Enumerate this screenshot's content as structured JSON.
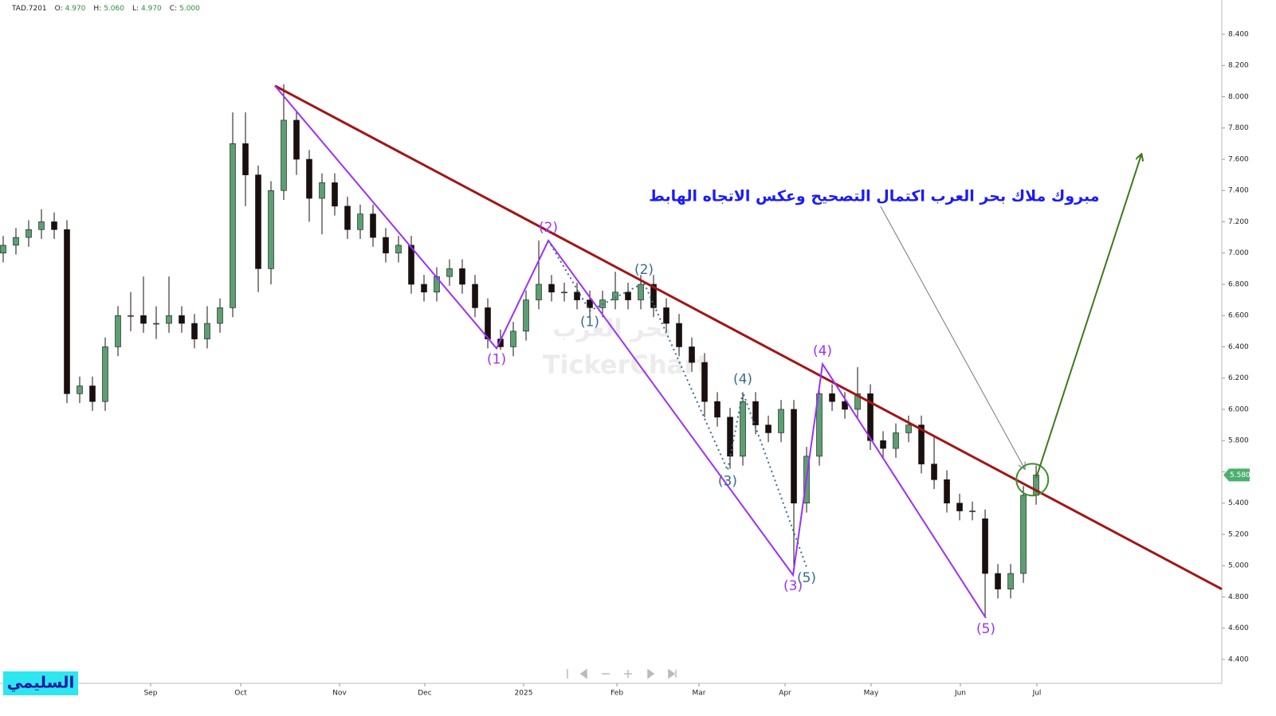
{
  "chart_data": {
    "type": "candlestick",
    "quote": {
      "symbol": "TAD.7201",
      "fields": [
        {
          "label": "O:",
          "value": "4.970"
        },
        {
          "label": "H:",
          "value": "5.060"
        },
        {
          "label": "L:",
          "value": "4.970"
        },
        {
          "label": "C:",
          "value": "5.000"
        }
      ]
    },
    "up_color": "#5b9f72",
    "down_color": "#1a0f0f",
    "xlim": [
      -0.25,
      95.56
    ],
    "ylim": [
      4.247,
      8.619
    ],
    "xticks": [
      {
        "value": 11.56,
        "label": "Sep"
      },
      {
        "value": 18.63,
        "label": "Oct"
      },
      {
        "value": 26.38,
        "label": "Nov"
      },
      {
        "value": 33.06,
        "label": "Dec"
      },
      {
        "value": 40.81,
        "label": "2025"
      },
      {
        "value": 48.13,
        "label": "Feb"
      },
      {
        "value": 54.56,
        "label": "Mar"
      },
      {
        "value": 61.31,
        "label": "Apr"
      },
      {
        "value": 68.06,
        "label": "May"
      },
      {
        "value": 75.06,
        "label": "Jun"
      },
      {
        "value": 81.06,
        "label": "Jul"
      }
    ],
    "yticks": [
      {
        "value": 4.4,
        "label": "4.400"
      },
      {
        "value": 4.6,
        "label": "4.600"
      },
      {
        "value": 4.8,
        "label": "4.800"
      },
      {
        "value": 5.0,
        "label": "5.000"
      },
      {
        "value": 5.2,
        "label": "5.200"
      },
      {
        "value": 5.4,
        "label": "5.400"
      },
      {
        "value": 5.6,
        "label": "5.600"
      },
      {
        "value": 5.8,
        "label": "5.800"
      },
      {
        "value": 6.0,
        "label": "6.000"
      },
      {
        "value": 6.2,
        "label": "6.200"
      },
      {
        "value": 6.4,
        "label": "6.400"
      },
      {
        "value": 6.6,
        "label": "6.600"
      },
      {
        "value": 6.8,
        "label": "6.800"
      },
      {
        "value": 7.0,
        "label": "7.000"
      },
      {
        "value": 7.2,
        "label": "7.200"
      },
      {
        "value": 7.4,
        "label": "7.400"
      },
      {
        "value": 7.6,
        "label": "7.600"
      },
      {
        "value": 7.8,
        "label": "7.800"
      },
      {
        "value": 8.0,
        "label": "8.000"
      },
      {
        "value": 8.2,
        "label": "8.200"
      },
      {
        "value": 8.4,
        "label": "8.400"
      }
    ],
    "open": [
      7.0,
      7.05,
      7.1,
      7.15,
      7.2,
      7.15,
      6.1,
      6.15,
      6.05,
      6.4,
      6.6,
      6.6,
      6.55,
      6.55,
      6.6,
      6.55,
      6.45,
      6.55,
      6.65,
      7.7,
      7.5,
      6.9,
      7.4,
      7.85,
      7.6,
      7.35,
      7.45,
      7.3,
      7.15,
      7.25,
      7.1,
      7.0,
      7.05,
      6.8,
      6.75,
      6.85,
      6.9,
      6.8,
      6.65,
      6.45,
      6.4,
      6.5,
      6.7,
      6.8,
      6.75,
      6.75,
      6.7,
      6.65,
      6.7,
      6.75,
      6.7,
      6.8,
      6.65,
      6.55,
      6.4,
      6.3,
      6.05,
      5.95,
      5.7,
      6.05,
      5.9,
      5.85,
      6.0,
      5.4,
      5.7,
      6.1,
      6.05,
      6.0,
      6.1,
      5.8,
      5.75,
      5.85,
      5.9,
      5.65,
      5.55,
      5.4,
      5.35,
      5.3,
      4.95,
      4.85,
      4.95,
      5.45
    ],
    "high": [
      7.11,
      7.16,
      7.21,
      7.28,
      7.26,
      7.21,
      6.21,
      6.21,
      6.46,
      6.66,
      6.75,
      6.85,
      6.66,
      6.85,
      6.66,
      6.61,
      6.66,
      6.71,
      7.9,
      7.9,
      7.56,
      7.46,
      8.08,
      7.91,
      7.66,
      7.51,
      7.51,
      7.36,
      7.31,
      7.31,
      7.16,
      7.11,
      7.11,
      6.86,
      6.91,
      6.96,
      6.96,
      6.86,
      6.71,
      6.51,
      6.56,
      6.76,
      7.08,
      6.86,
      6.81,
      6.81,
      6.76,
      6.76,
      6.88,
      6.81,
      6.86,
      6.86,
      6.71,
      6.61,
      6.46,
      6.36,
      6.11,
      6.01,
      6.11,
      6.11,
      5.96,
      6.06,
      6.06,
      5.76,
      6.16,
      6.16,
      6.11,
      6.27,
      6.16,
      5.86,
      5.91,
      5.96,
      5.96,
      5.83,
      5.61,
      5.46,
      5.41,
      5.36,
      5.01,
      5.01,
      5.51,
      5.64
    ],
    "low": [
      6.94,
      6.99,
      7.04,
      7.09,
      7.09,
      6.04,
      6.04,
      5.99,
      5.99,
      6.34,
      6.5,
      6.49,
      6.45,
      6.49,
      6.49,
      6.39,
      6.39,
      6.49,
      6.59,
      7.3,
      6.75,
      6.8,
      7.34,
      7.5,
      7.2,
      7.12,
      7.24,
      7.09,
      7.09,
      7.04,
      6.94,
      6.94,
      6.74,
      6.69,
      6.69,
      6.79,
      6.74,
      6.59,
      6.39,
      6.38,
      6.34,
      6.44,
      6.64,
      6.69,
      6.69,
      6.64,
      6.59,
      6.59,
      6.64,
      6.64,
      6.64,
      6.59,
      6.49,
      6.34,
      6.24,
      5.95,
      5.89,
      5.62,
      5.64,
      5.84,
      5.79,
      5.79,
      4.95,
      5.34,
      5.64,
      5.99,
      5.94,
      5.94,
      5.74,
      5.69,
      5.69,
      5.79,
      5.59,
      5.49,
      5.34,
      5.29,
      5.29,
      4.67,
      4.79,
      4.79,
      4.89,
      5.39
    ],
    "close": [
      7.05,
      7.1,
      7.15,
      7.2,
      7.15,
      6.1,
      6.15,
      6.05,
      6.4,
      6.6,
      6.6,
      6.55,
      6.55,
      6.6,
      6.55,
      6.45,
      6.55,
      6.65,
      7.7,
      7.5,
      6.9,
      7.4,
      7.85,
      7.6,
      7.35,
      7.45,
      7.3,
      7.15,
      7.25,
      7.1,
      7.0,
      7.05,
      6.8,
      6.75,
      6.85,
      6.9,
      6.8,
      6.65,
      6.45,
      6.4,
      6.5,
      6.7,
      6.8,
      6.75,
      6.75,
      6.7,
      6.65,
      6.7,
      6.75,
      6.7,
      6.8,
      6.65,
      6.55,
      6.4,
      6.3,
      6.05,
      5.95,
      5.7,
      6.05,
      5.9,
      5.85,
      6.0,
      5.4,
      5.7,
      6.1,
      6.05,
      6.0,
      6.1,
      5.8,
      5.75,
      5.85,
      5.9,
      5.65,
      5.55,
      5.4,
      5.35,
      5.35,
      4.95,
      4.85,
      4.95,
      5.45,
      5.58
    ],
    "last_price": {
      "value": 5.58,
      "label": "5.580",
      "color": "#4caf6e"
    },
    "trendline": {
      "color": "#a31515",
      "points": [
        [
          21.31,
          8.07
        ],
        [
          95.56,
          4.85
        ]
      ]
    },
    "waves": [
      {
        "color": "#9b30ff",
        "dashed": false,
        "points": [
          [
            21.31,
            8.07
          ],
          [
            38.69,
            6.39
          ],
          [
            42.75,
            7.08
          ],
          [
            61.94,
            4.94
          ],
          [
            64.25,
            6.29
          ],
          [
            77.06,
            4.665
          ]
        ],
        "labels": [
          null,
          "(1)",
          "(2)",
          "(3)",
          "(4)",
          "(5)"
        ]
      },
      {
        "color": "#3a6b8c",
        "dashed": true,
        "points": [
          [
            42.75,
            7.08
          ],
          [
            46.0,
            6.63
          ],
          [
            50.25,
            6.81
          ],
          [
            56.81,
            5.61
          ],
          [
            58.0,
            6.11
          ],
          [
            63.0,
            4.99
          ]
        ],
        "labels": [
          null,
          "(1)",
          "(2)",
          "(3)",
          "(4)",
          "(5)"
        ]
      }
    ],
    "breakout_circle": {
      "color": "#3c8f2a",
      "center": [
        80.7,
        5.55
      ]
    },
    "target_arrow": {
      "color": "#3c7a1a",
      "points": [
        [
          81.0,
          5.56
        ],
        [
          89.25,
          7.63
        ]
      ]
    },
    "note": {
      "text": "مبروك ملاك بحر العرب اكتمال التصحيح وعكس الاتجاه الهابط",
      "color": "#1a1aff",
      "at": [
        68.3,
        7.36
      ],
      "arrow_to": [
        80.1,
        5.62
      ]
    },
    "watermark": [
      "بحر العرب",
      "TickerChart"
    ],
    "signature": "السليمي"
  }
}
